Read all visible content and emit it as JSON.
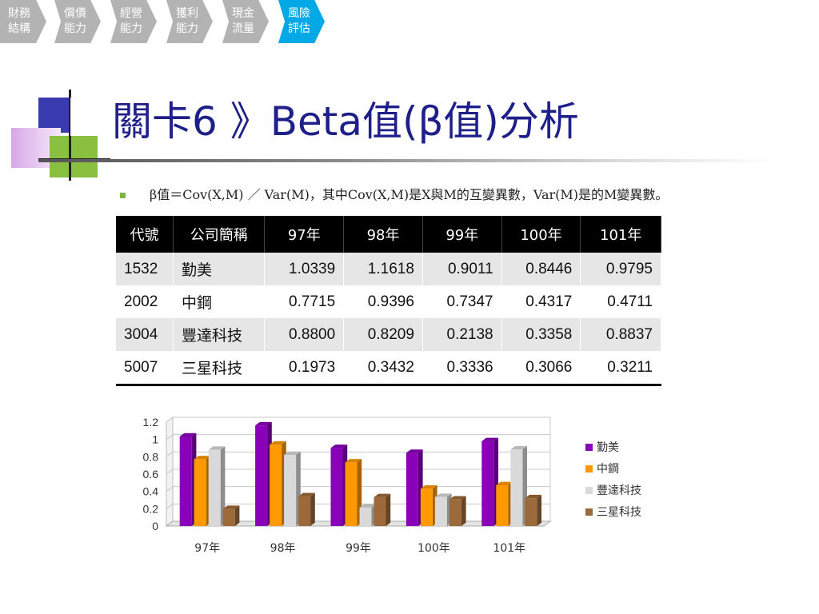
{
  "nav": {
    "steps": [
      {
        "label": "財務結構",
        "active": false
      },
      {
        "label": "償債能力",
        "active": false
      },
      {
        "label": "經營能力",
        "active": false
      },
      {
        "label": "獲利能力",
        "active": false
      },
      {
        "label": "現金流量",
        "active": false
      },
      {
        "label": "風險評估",
        "active": true
      }
    ]
  },
  "slide": {
    "title": "關卡6 》Beta值(β值)分析",
    "bullet": "β值＝Cov(X,M) ／ Var(M)，其中Cov(X,M)是X與M的互變異數，Var(M)是的M變異數。"
  },
  "table": {
    "headers": [
      "代號",
      "公司簡稱",
      "97年",
      "98年",
      "99年",
      "100年",
      "101年"
    ],
    "rows": [
      [
        "1532",
        "勤美",
        "1.0339",
        "1.1618",
        "0.9011",
        "0.8446",
        "0.9795"
      ],
      [
        "2002",
        "中鋼",
        "0.7715",
        "0.9396",
        "0.7347",
        "0.4317",
        "0.4711"
      ],
      [
        "3004",
        "豐達科技",
        "0.8800",
        "0.8209",
        "0.2138",
        "0.3358",
        "0.8837"
      ],
      [
        "5007",
        "三星科技",
        "0.1973",
        "0.3432",
        "0.3336",
        "0.3066",
        "0.3211"
      ]
    ]
  },
  "chart_data": {
    "type": "bar",
    "categories": [
      "97年",
      "98年",
      "99年",
      "100年",
      "101年"
    ],
    "series": [
      {
        "name": "勤美",
        "values": [
          1.0339,
          1.1618,
          0.9011,
          0.8446,
          0.9795
        ]
      },
      {
        "name": "中鋼",
        "values": [
          0.7715,
          0.9396,
          0.7347,
          0.4317,
          0.4711
        ]
      },
      {
        "name": "豐達科技",
        "values": [
          0.88,
          0.8209,
          0.2138,
          0.3358,
          0.8837
        ]
      },
      {
        "name": "三星科技",
        "values": [
          0.1973,
          0.3432,
          0.3336,
          0.3066,
          0.3211
        ]
      }
    ],
    "ylim": [
      0,
      1.2
    ],
    "yticks": [
      "0",
      "0.2",
      "0.4",
      "0.6",
      "0.8",
      "1",
      "1.2"
    ],
    "ytick_values": [
      0,
      0.2,
      0.4,
      0.6,
      0.8,
      1,
      1.2
    ],
    "grid": true,
    "legend": "right",
    "colors": [
      "#8a00b8",
      "#ff9900",
      "#d9d9d9",
      "#9c6a3a"
    ]
  }
}
